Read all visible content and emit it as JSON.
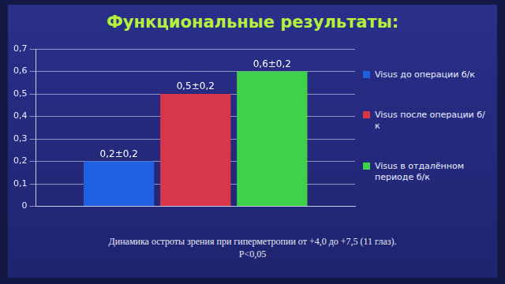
{
  "chart_data": {
    "type": "bar",
    "title": "Функциональные результаты:",
    "categories": [
      null
    ],
    "series": [
      {
        "name": "Visus до операции б/к",
        "color": "#1f5fe0",
        "values": [
          0.2
        ],
        "value_labels": [
          "0,2±0,2"
        ]
      },
      {
        "name": "Visus после операции б/к",
        "color": "#d8364a",
        "values": [
          0.5
        ],
        "value_labels": [
          "0,5±0,2"
        ]
      },
      {
        "name": "Visus в отдалённом периоде б/к",
        "color": "#3fd04c",
        "values": [
          0.6
        ],
        "value_labels": [
          "0,6±0,2"
        ]
      }
    ],
    "ylim": [
      0,
      0.7
    ],
    "yticks": [
      0,
      {
        "value": 0.1,
        "label": "0,1"
      },
      {
        "value": 0.2,
        "label": "0,2"
      },
      {
        "value": 0.3,
        "label": "0,3"
      },
      {
        "value": 0.4,
        "label": "0,4"
      },
      {
        "value": 0.5,
        "label": "0,5"
      },
      {
        "value": 0.6,
        "label": "0,6"
      },
      {
        "value": 0.7,
        "label": "0,7"
      }
    ],
    "grid": true,
    "legend": "right",
    "data_labels": true,
    "annotations": [
      "Динамика остроты зрения при гиперметропии от +4,0 до +7,5 (11 глаз).",
      "P<0,05"
    ]
  }
}
